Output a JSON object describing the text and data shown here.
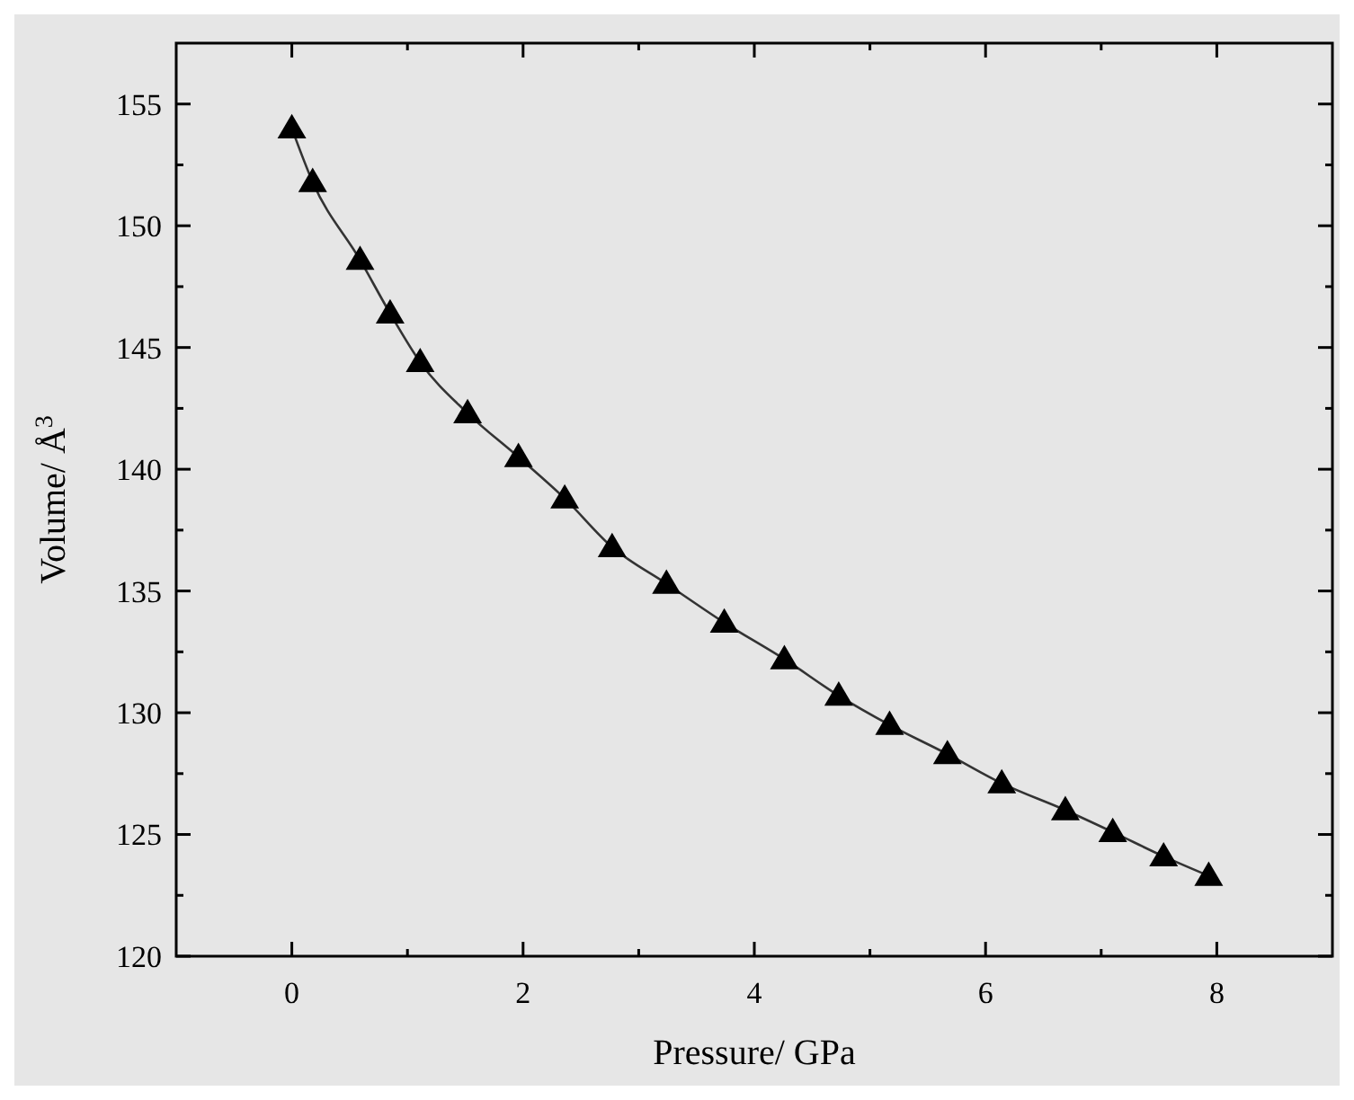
{
  "chart_data": {
    "type": "scatter",
    "xlabel": "Pressure/ GPa",
    "ylabel": "Volume/ Å$^{3}$",
    "xlim": [
      -1,
      9
    ],
    "ylim": [
      120,
      157.5
    ],
    "xticks": [
      0,
      {
        "value": 1,
        "label": null
      },
      2,
      {
        "value": 3,
        "label": null
      },
      4,
      {
        "value": 5,
        "label": null
      },
      6,
      {
        "value": 7,
        "label": null
      },
      8
    ],
    "yticks": [
      120,
      {
        "value": 122.5,
        "label": null
      },
      125,
      {
        "value": 127.5,
        "label": null
      },
      130,
      {
        "value": 132.5,
        "label": null
      },
      135,
      {
        "value": 137.5,
        "label": null
      },
      140,
      {
        "value": 142.5,
        "label": null
      },
      145,
      {
        "value": 147.5,
        "label": null
      },
      150,
      {
        "value": 152.5,
        "label": null
      },
      155
    ],
    "grid": false,
    "series": [
      {
        "type": "line",
        "color": "#333333",
        "marker": "none",
        "line_style": "solid",
        "x": [
          0,
          0.18,
          0.59,
          0.85,
          1.11,
          1.52,
          1.96,
          2.36,
          2.77,
          3.24,
          3.74,
          4.26,
          4.73,
          5.17,
          5.67,
          6.14,
          6.69,
          7.1,
          7.54,
          7.93
        ],
        "values": [
          154.0,
          151.8,
          148.6,
          146.4,
          144.4,
          142.3,
          140.5,
          138.8,
          136.8,
          135.3,
          133.7,
          132.2,
          130.7,
          129.5,
          128.3,
          127.1,
          126.0,
          125.1,
          124.1,
          123.3
        ]
      },
      {
        "color": "#000000",
        "marker": "triangle",
        "x": [
          0,
          0.18,
          0.59,
          0.85,
          1.11,
          1.52,
          1.96,
          2.36,
          2.77,
          3.24,
          3.74,
          4.26,
          4.73,
          5.17,
          5.67,
          6.14,
          6.69,
          7.1,
          7.54,
          7.93
        ],
        "values": [
          154.0,
          151.8,
          148.6,
          146.4,
          144.4,
          142.3,
          140.5,
          138.8,
          136.8,
          135.3,
          133.7,
          132.2,
          130.7,
          129.5,
          128.3,
          127.1,
          126.0,
          125.1,
          124.1,
          123.3
        ]
      }
    ]
  }
}
